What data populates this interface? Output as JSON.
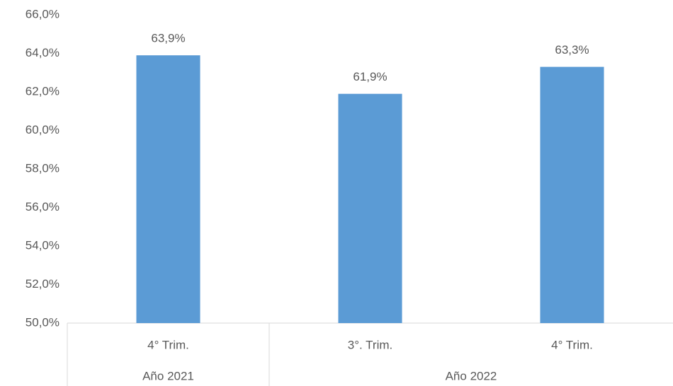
{
  "chart_data": {
    "type": "bar",
    "categories": [
      "4° Trim.",
      "3°. Trim.",
      "4° Trim."
    ],
    "groups": [
      {
        "label": "Año 2021",
        "span": 1
      },
      {
        "label": "Año 2022",
        "span": 2
      }
    ],
    "values": [
      63.9,
      61.9,
      63.3
    ],
    "value_labels": [
      "63,9%",
      "61,9%",
      "63,3%"
    ],
    "color": "#5b9bd5",
    "ylim": [
      50,
      66
    ],
    "yticks": [
      {
        "value": 50,
        "label": "50,0%"
      },
      {
        "value": 52,
        "label": "52,0%"
      },
      {
        "value": 54,
        "label": "54,0%"
      },
      {
        "value": 56,
        "label": "56,0%"
      },
      {
        "value": 58,
        "label": "58,0%"
      },
      {
        "value": 60,
        "label": "60,0%"
      },
      {
        "value": 62,
        "label": "62,0%"
      },
      {
        "value": 64,
        "label": "64,0%"
      },
      {
        "value": 66,
        "label": "66,0%"
      }
    ],
    "grid": false
  }
}
